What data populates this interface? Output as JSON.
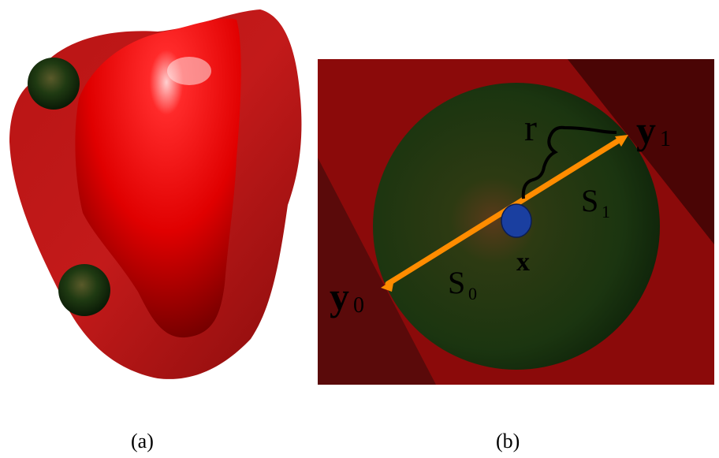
{
  "panels": {
    "a": {
      "caption": "(a)"
    },
    "b": {
      "caption": "(b)",
      "labels": {
        "radius": "r",
        "center": "x",
        "y1_base": "y",
        "y1_sub": "1",
        "y0_base": "y",
        "y0_sub": "0",
        "s1_base": "S",
        "s1_sub": "1",
        "s0_base": "S",
        "s0_sub": "0"
      }
    }
  },
  "colors": {
    "surface_red": "#cc0000",
    "shell_dark_red": "#8b0a0a",
    "sphere_green": "#1d3a12",
    "arrow_orange": "#ff8c00",
    "center_blue": "#1a3fa0"
  }
}
